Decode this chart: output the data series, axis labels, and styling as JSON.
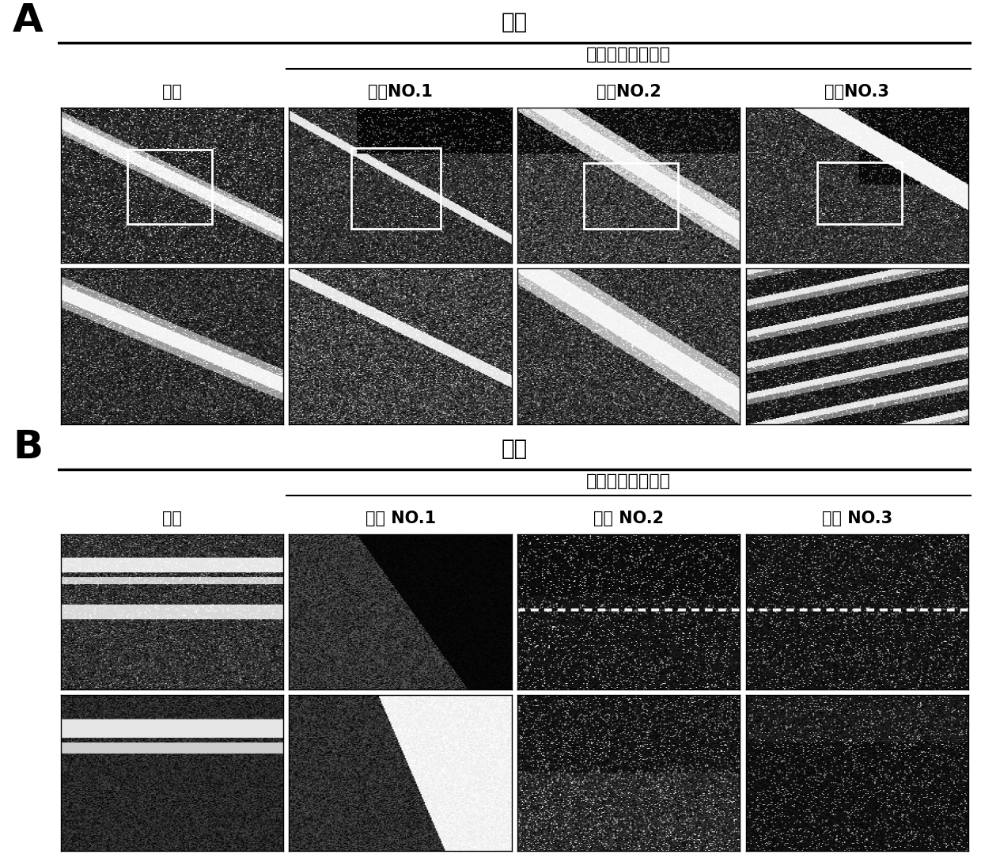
{
  "background_color": "#ffffff",
  "panel_A": {
    "label": "A",
    "title": "胫骨",
    "subtitle": "白血病潜伏期阶段",
    "col_labels": [
      "对照",
      "小鼠NO.1",
      "小鼠NO.2",
      "小鼠NO.3"
    ]
  },
  "panel_B": {
    "label": "B",
    "title": "胫骨",
    "subtitle": "白血病潜伏期阶段",
    "col_labels": [
      "对照",
      "小鼠 NO.1",
      "小鼠 NO.2",
      "小鼠 NO.3"
    ]
  },
  "label_fontsize": 36,
  "title_fontsize": 20,
  "subtitle_fontsize": 16,
  "col_label_fontsize": 15
}
